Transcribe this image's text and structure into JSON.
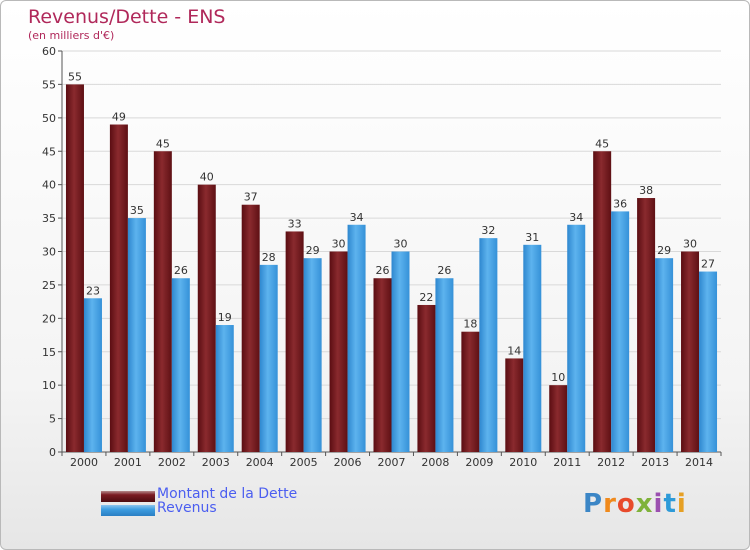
{
  "header": {
    "title": "Revenus/Dette - ENS",
    "subtitle": "(en milliers d'€)"
  },
  "legend": {
    "items": [
      {
        "label": "Montant de la Dette",
        "color": "#7a1b22"
      },
      {
        "label": "Revenus",
        "color": "#3d9de0"
      }
    ]
  },
  "brand": {
    "letters": [
      "P",
      "r",
      "o",
      "x",
      "i",
      "t",
      "i"
    ],
    "colors": [
      "#3b86c6",
      "#f08a1c",
      "#e84a2b",
      "#7fb23a",
      "#9b4fb0",
      "#2d9ad8",
      "#e6a024"
    ]
  },
  "chart_data": {
    "type": "bar",
    "categories": [
      "2000",
      "2001",
      "2002",
      "2003",
      "2004",
      "2005",
      "2006",
      "2007",
      "2008",
      "2009",
      "2010",
      "2011",
      "2012",
      "2013",
      "2014"
    ],
    "series": [
      {
        "name": "Montant de la Dette",
        "color": "#7a1b22",
        "values": [
          55,
          49,
          45,
          40,
          37,
          33,
          30,
          26,
          22,
          18,
          14,
          10,
          45,
          38,
          30
        ]
      },
      {
        "name": "Revenus",
        "color": "#3d9de0",
        "values": [
          23,
          35,
          26,
          19,
          28,
          29,
          34,
          30,
          26,
          32,
          31,
          34,
          36,
          29,
          27
        ]
      }
    ],
    "ylim": [
      0,
      60
    ],
    "yticks": [
      "0",
      "5",
      "10",
      "15",
      "20",
      "25",
      "30",
      "35",
      "40",
      "45",
      "50",
      "55",
      "60"
    ],
    "grid": true
  }
}
